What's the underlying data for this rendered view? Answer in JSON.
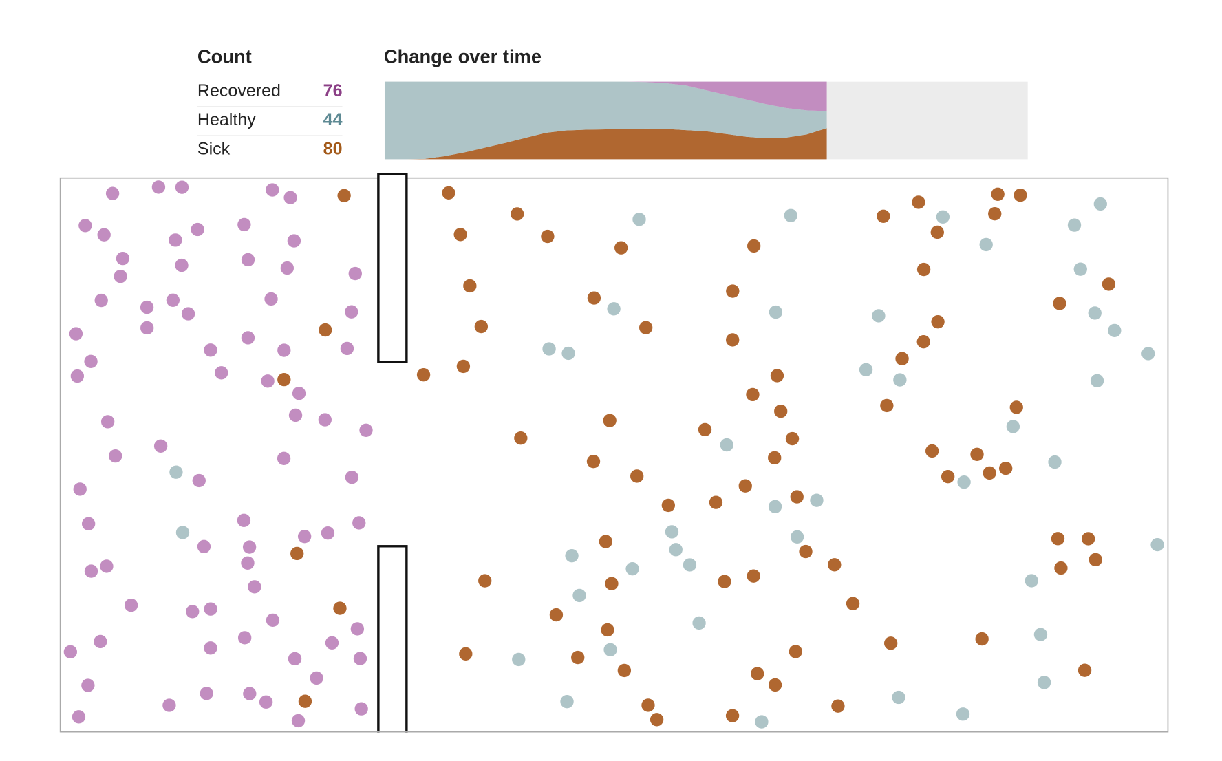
{
  "count": {
    "title": "Count",
    "rows": [
      {
        "label": "Recovered",
        "value": 76,
        "color": "#c28dc0",
        "text_color": "#8b3f86",
        "history": [
          0,
          0,
          0,
          0,
          0,
          0,
          0,
          0,
          0,
          0,
          0,
          0,
          0,
          1,
          4,
          10,
          22,
          34,
          46,
          58,
          68,
          74,
          76
        ]
      },
      {
        "label": "Healthy",
        "value": 44,
        "color": "#aec4c7",
        "text_color": "#5e8a94",
        "history": [
          200,
          200,
          199,
          192,
          182,
          170,
          158,
          145,
          132,
          126,
          124,
          123,
          123,
          120,
          118,
          115,
          106,
          101,
          96,
          88,
          76,
          62,
          44
        ]
      },
      {
        "label": "Sick",
        "value": 80,
        "color": "#b06730",
        "text_color": "#a35a1a",
        "history": [
          0,
          0,
          1,
          8,
          18,
          30,
          42,
          55,
          68,
          74,
          76,
          77,
          77,
          79,
          78,
          75,
          72,
          65,
          58,
          54,
          56,
          64,
          80
        ]
      }
    ]
  },
  "change_over_time": {
    "type": "area",
    "title": "Change over time",
    "x": [
      0,
      1,
      2,
      3,
      4,
      5,
      6,
      7,
      8,
      9,
      10,
      11,
      12,
      13,
      14,
      15,
      16,
      17,
      18,
      19,
      20,
      21,
      22
    ],
    "xlim": [
      0,
      32
    ],
    "ylim": [
      0,
      200
    ],
    "background": "#ececec"
  }
}
